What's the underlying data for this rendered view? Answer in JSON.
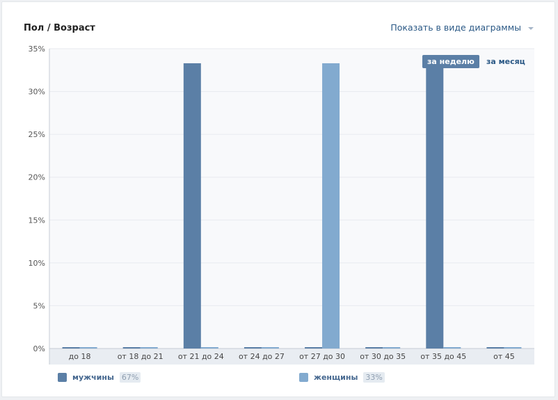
{
  "header": {
    "title": "Пол / Возраст",
    "view_toggle": "Показать в виде диаграммы"
  },
  "periods": {
    "week": "за неделю",
    "month": "за месяц"
  },
  "legend": [
    {
      "label": "мужчины",
      "pct": "67%"
    },
    {
      "label": "женщины",
      "pct": "33%"
    }
  ],
  "colors": {
    "men": "#5b7fa6",
    "women": "#82aacf",
    "grid": "#e7eaef",
    "bg": "#f8f9fb",
    "axis": "#c6ccd4"
  },
  "chart_data": {
    "type": "bar",
    "categories": [
      "до 18",
      "от 18 до 21",
      "от 21 до 24",
      "от 24 до 27",
      "от 27 до 30",
      "от 30 до 35",
      "от 35 до 45",
      "от 45"
    ],
    "series": [
      {
        "name": "мужчины",
        "values": [
          0,
          0,
          33.3,
          0,
          0,
          0,
          33.3,
          0
        ]
      },
      {
        "name": "женщины",
        "values": [
          0,
          0,
          0,
          0,
          33.3,
          0,
          0,
          0
        ]
      }
    ],
    "ylim": [
      0,
      35
    ],
    "yticks": [
      "0%",
      "5%",
      "10%",
      "15%",
      "20%",
      "25%",
      "30%",
      "35%"
    ],
    "grid": true,
    "legend_position": "bottom"
  }
}
